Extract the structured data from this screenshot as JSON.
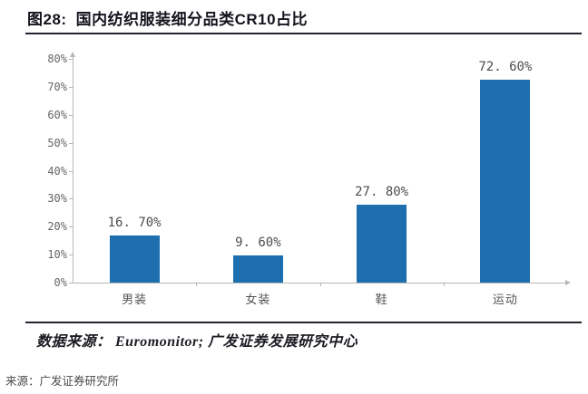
{
  "page": {
    "title_prefix": "图28:",
    "title_text": "国内纺织服装细分品类CR10占比",
    "data_source_line": "数据来源： Euromonitor;  广发证券发展研究中心",
    "footer_source": "来源：广发证券研究所"
  },
  "colors": {
    "bar": "#1e6fad",
    "title_text": "#14141f",
    "rule": "#23232e",
    "axis": "#b6b6b6",
    "tick_label": "#666666",
    "value_label": "#4d4d4d"
  },
  "chart_data": {
    "type": "bar",
    "title": "国内纺织服装细分品类CR10占比",
    "categories": [
      "男装",
      "女装",
      "鞋",
      "运动"
    ],
    "values": [
      16.7,
      9.6,
      27.8,
      72.6
    ],
    "value_labels": [
      "16. 70%",
      "9. 60%",
      "27. 80%",
      "72. 60%"
    ],
    "y_ticks": [
      "80%",
      "70%",
      "60%",
      "50%",
      "40%",
      "30%",
      "20%",
      "10%",
      "0%"
    ],
    "ylim": [
      0,
      80
    ],
    "y_tick_step": 10,
    "xlabel": "",
    "ylabel": "",
    "grid": false,
    "legend": "none",
    "bar_color": "#1e6fad"
  }
}
